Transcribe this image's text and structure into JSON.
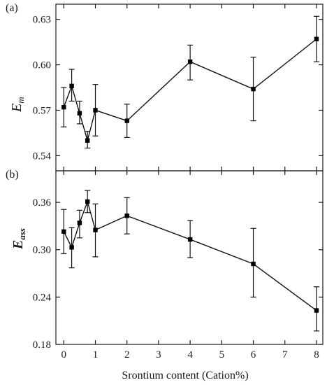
{
  "chart_data": [
    {
      "type": "line",
      "panel_label": "(a)",
      "ylabel": {
        "main": "E",
        "sub": "m",
        "bold": false
      },
      "ylim": [
        0.53,
        0.64
      ],
      "yticks": [
        0.54,
        0.57,
        0.6,
        0.63
      ],
      "ytick_labels": [
        "0.54",
        "0.57",
        "0.60",
        "0.63"
      ],
      "x": [
        0,
        0.25,
        0.5,
        0.75,
        1,
        2,
        4,
        6,
        8
      ],
      "series": [
        {
          "values": [
            0.572,
            0.586,
            0.568,
            0.55,
            0.57,
            0.563,
            0.602,
            0.584,
            0.617
          ],
          "err_high": [
            0.585,
            0.597,
            0.576,
            0.556,
            0.587,
            0.574,
            0.613,
            0.605,
            0.632
          ],
          "err_low": [
            0.559,
            0.576,
            0.561,
            0.545,
            0.553,
            0.552,
            0.59,
            0.563,
            0.602
          ]
        }
      ]
    },
    {
      "type": "line",
      "panel_label": "(b)",
      "ylabel": {
        "main": "E",
        "sub": "ass",
        "bold": true
      },
      "ylim": [
        0.18,
        0.4
      ],
      "yticks": [
        0.18,
        0.24,
        0.3,
        0.36
      ],
      "ytick_labels": [
        "0.18",
        "0.24",
        "0.30",
        "0.36"
      ],
      "x": [
        0,
        0.25,
        0.5,
        0.75,
        1,
        2,
        4,
        6,
        8
      ],
      "xticks": [
        0,
        1,
        2,
        3,
        4,
        5,
        6,
        7,
        8
      ],
      "xtick_labels": [
        "0",
        "1",
        "2",
        "3",
        "4",
        "5",
        "6",
        "7",
        "8"
      ],
      "xlabel": "Srontium content (Cation%)",
      "series": [
        {
          "values": [
            0.323,
            0.303,
            0.334,
            0.361,
            0.325,
            0.343,
            0.313,
            0.282,
            0.223
          ],
          "err_high": [
            0.351,
            0.328,
            0.35,
            0.375,
            0.358,
            0.366,
            0.337,
            0.327,
            0.253
          ],
          "err_low": [
            0.295,
            0.277,
            0.315,
            0.347,
            0.291,
            0.32,
            0.29,
            0.24,
            0.197
          ]
        }
      ]
    }
  ]
}
